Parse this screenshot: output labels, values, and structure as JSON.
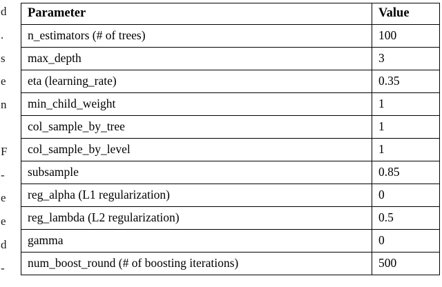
{
  "page": {
    "background": "#ffffff",
    "text_color": "#000000"
  },
  "left_margin_fragments": [
    "d",
    ".",
    "s",
    "e",
    "n",
    "",
    "F",
    "-",
    "e",
    "e",
    "d",
    "-"
  ],
  "table": {
    "headers": [
      "Parameter",
      "Value"
    ],
    "rows": [
      [
        "n_estimators (# of trees)",
        "100"
      ],
      [
        "max_depth",
        "3"
      ],
      [
        "eta (learning_rate)",
        "0.35"
      ],
      [
        "min_child_weight",
        "1"
      ],
      [
        "col_sample_by_tree",
        "1"
      ],
      [
        "col_sample_by_level",
        "1"
      ],
      [
        "subsample",
        "0.85"
      ],
      [
        "reg_alpha (L1 regularization)",
        "0"
      ],
      [
        "reg_lambda (L2 regularization)",
        "0.5"
      ],
      [
        "gamma",
        "0"
      ],
      [
        "num_boost_round (# of boosting iterations)",
        "500"
      ]
    ]
  }
}
